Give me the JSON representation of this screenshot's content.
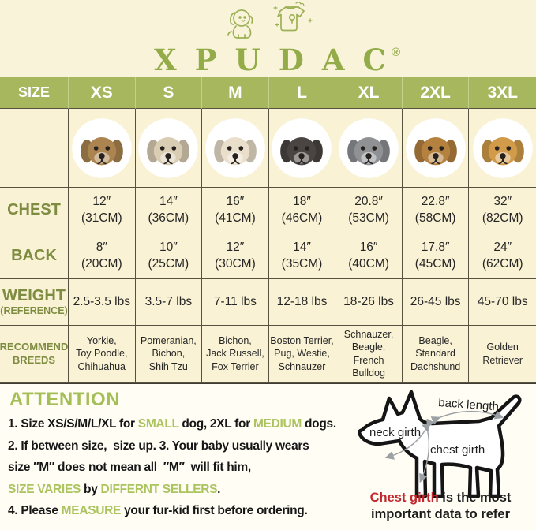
{
  "brand": {
    "name": "XPUDAC",
    "registered": "®"
  },
  "accents": {
    "brand_green": "#93ab49",
    "header_green": "#a6b75d",
    "label_olive": "#7d8c41",
    "attention_green": "#abc45f",
    "chest_red": "#c1272d",
    "table_cream": "#f9f2d4"
  },
  "size_table": {
    "corner_label": "SIZE",
    "sizes": [
      "XS",
      "S",
      "M",
      "L",
      "XL",
      "2XL",
      "3XL"
    ],
    "photos": [
      {
        "breed": "Yorkie",
        "fur": "#ab8450"
      },
      {
        "breed": "Shih Tzu",
        "fur": "#d9cdb4"
      },
      {
        "breed": "Jack Russell",
        "fur": "#e9dfcb"
      },
      {
        "breed": "Boston Terrier",
        "fur": "#4a4543"
      },
      {
        "breed": "Schnauzer",
        "fur": "#8f9194"
      },
      {
        "breed": "Beagle",
        "fur": "#b5813f"
      },
      {
        "breed": "Golden Retriever",
        "fur": "#d19b4a"
      }
    ],
    "chest": {
      "label": "CHEST",
      "values": [
        "12″\n(31CM)",
        "14″\n(36CM)",
        "16″\n(41CM)",
        "18″\n(46CM)",
        "20.8″\n(53CM)",
        "22.8″\n(58CM)",
        "32″\n(82CM)"
      ]
    },
    "back": {
      "label": "BACK",
      "values": [
        "8″\n(20CM)",
        "10″\n(25CM)",
        "12″\n(30CM)",
        "14″\n(35CM)",
        "16″\n(40CM)",
        "17.8″\n(45CM)",
        "24″\n(62CM)"
      ]
    },
    "weight": {
      "label": "WEIGHT",
      "sublabel": "(REFERENCE)",
      "values": [
        "2.5-3.5 lbs",
        "3.5-7 lbs",
        "7-11 lbs",
        "12-18 lbs",
        "18-26 lbs",
        "26-45 lbs",
        "45-70 lbs"
      ]
    },
    "breeds": {
      "label": "RECOMMEND\nBREEDS",
      "values": [
        "Yorkie,\nToy Poodle,\nChihuahua",
        "Pomeranian,\nBichon,\nShih Tzu",
        "Bichon,\nJack Russell,\nFox Terrier",
        "Boston Terrier,\nPug,  Westie,\nSchnauzer",
        "Schnauzer,\nBeagle,\nFrench Bulldog",
        "Beagle,\nStandard\nDachshund",
        "Golden\nRetriever"
      ]
    }
  },
  "attention": {
    "heading": "ATTENTION",
    "line1": {
      "a": "1. Size XS/S/M/L/XL for ",
      "b": "SMALL",
      "c": " dog, 2XL for ",
      "d": "MEDIUM",
      "e": " dogs."
    },
    "line2": "2. If between size,  size up. 3. Your baby usually wears",
    "line3": "size ″M″ does not mean all  ″M″  will fit him,",
    "line4": {
      "a": "SIZE VARIES",
      "b": " by ",
      "c": "DIFFERNT SELLERS",
      "d": "."
    },
    "line5": {
      "a": "4. Please ",
      "b": "MEASURE",
      "c": " your fur-kid first before ordering."
    }
  },
  "diagram": {
    "neck_label": "neck girth",
    "back_label": "back length",
    "chest_label": "chest girth",
    "caption_red": "Chest girth",
    "caption_rest": " is the most\nimportant data to refer"
  }
}
